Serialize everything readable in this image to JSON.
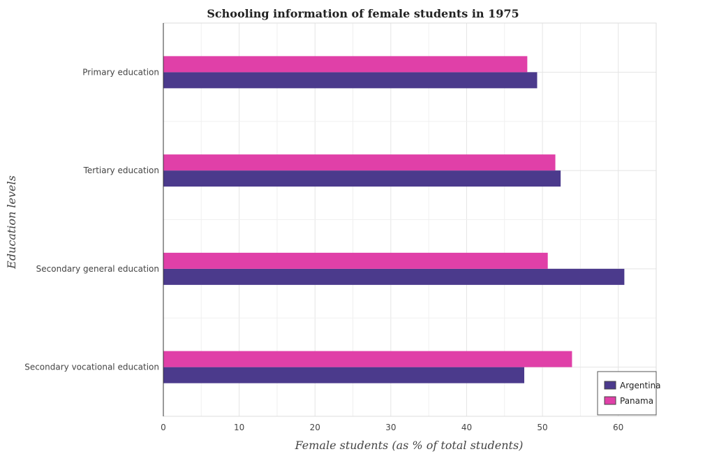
{
  "chart_data": {
    "type": "bar",
    "orientation": "horizontal",
    "title": "Schooling information of female students in 1975",
    "xlabel": "Female students (as % of total students)",
    "ylabel": "Education levels",
    "categories": [
      "Primary education",
      "Tertiary education",
      "Secondary general education",
      "Secondary vocational education"
    ],
    "series": [
      {
        "name": "Argentina",
        "color": "#4b3a8c",
        "values": [
          49.3,
          52.4,
          60.8,
          47.6
        ]
      },
      {
        "name": "Panama",
        "color": "#e040a8",
        "values": [
          48.0,
          51.7,
          50.7,
          53.9
        ]
      }
    ],
    "xlim": [
      0,
      65
    ],
    "xticks": [
      0,
      10,
      20,
      30,
      40,
      50,
      60
    ],
    "grid": true,
    "legend_position": "bottom-right"
  }
}
